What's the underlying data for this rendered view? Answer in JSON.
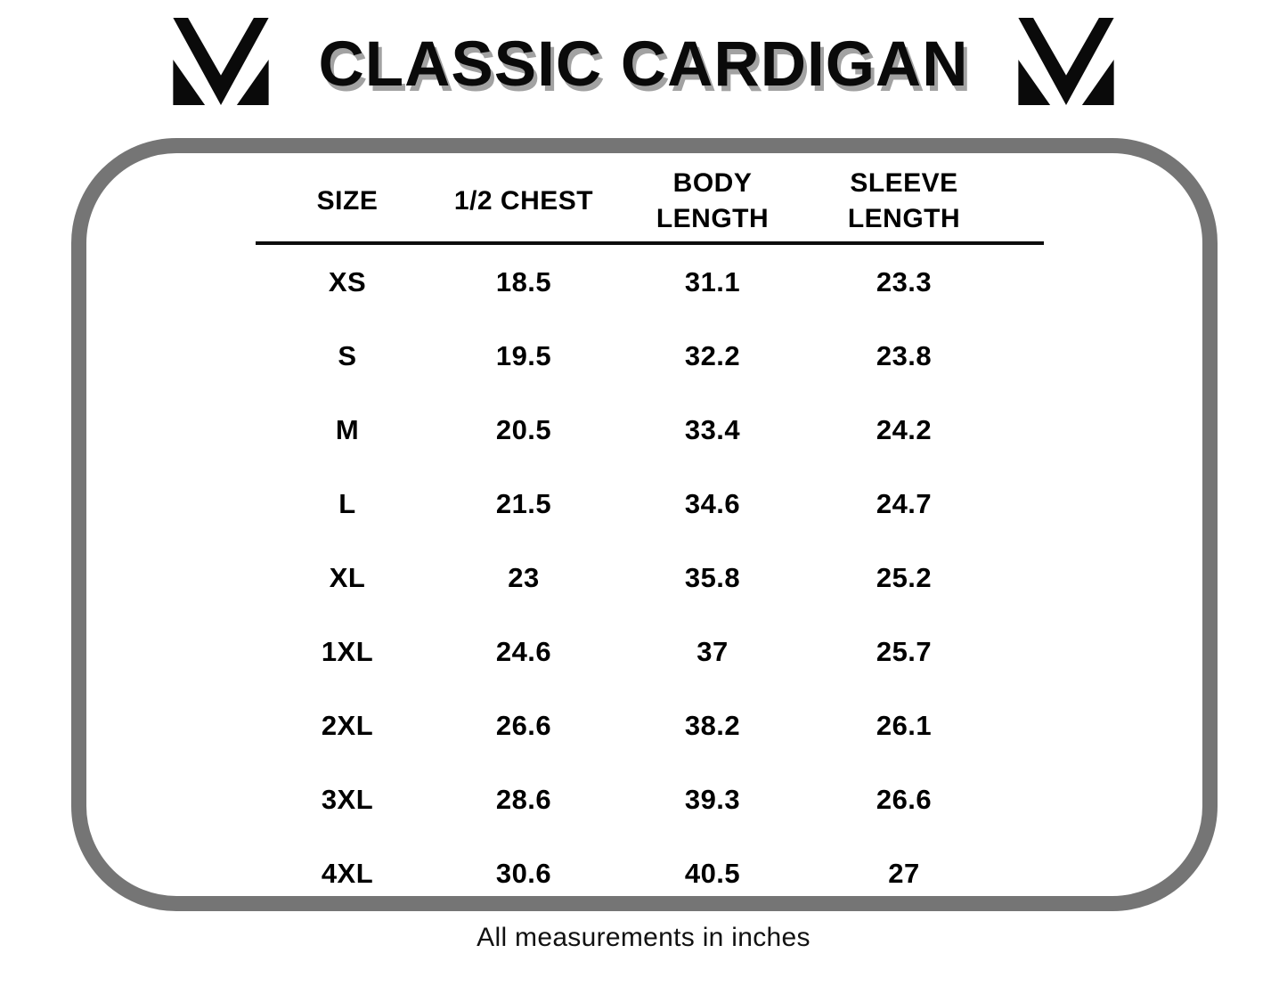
{
  "header": {
    "title": "CLASSIC CARDIGAN",
    "logo": "m-monogram"
  },
  "table": {
    "columns": [
      "SIZE",
      "1/2 CHEST",
      "BODY LENGTH",
      "SLEEVE LENGTH"
    ],
    "rows": [
      [
        "XS",
        "18.5",
        "31.1",
        "23.3"
      ],
      [
        "S",
        "19.5",
        "32.2",
        "23.8"
      ],
      [
        "M",
        "20.5",
        "33.4",
        "24.2"
      ],
      [
        "L",
        "21.5",
        "34.6",
        "24.7"
      ],
      [
        "XL",
        "23",
        "35.8",
        "25.2"
      ],
      [
        "1XL",
        "24.6",
        "37",
        "25.7"
      ],
      [
        "2XL",
        "26.6",
        "38.2",
        "26.1"
      ],
      [
        "3XL",
        "28.6",
        "39.3",
        "26.6"
      ],
      [
        "4XL",
        "30.6",
        "40.5",
        "27"
      ]
    ]
  },
  "footer": {
    "note": "All measurements in inches"
  },
  "colors": {
    "frame_border": "#757575",
    "text": "#000000",
    "title_shadow": "#a2a2a2"
  }
}
